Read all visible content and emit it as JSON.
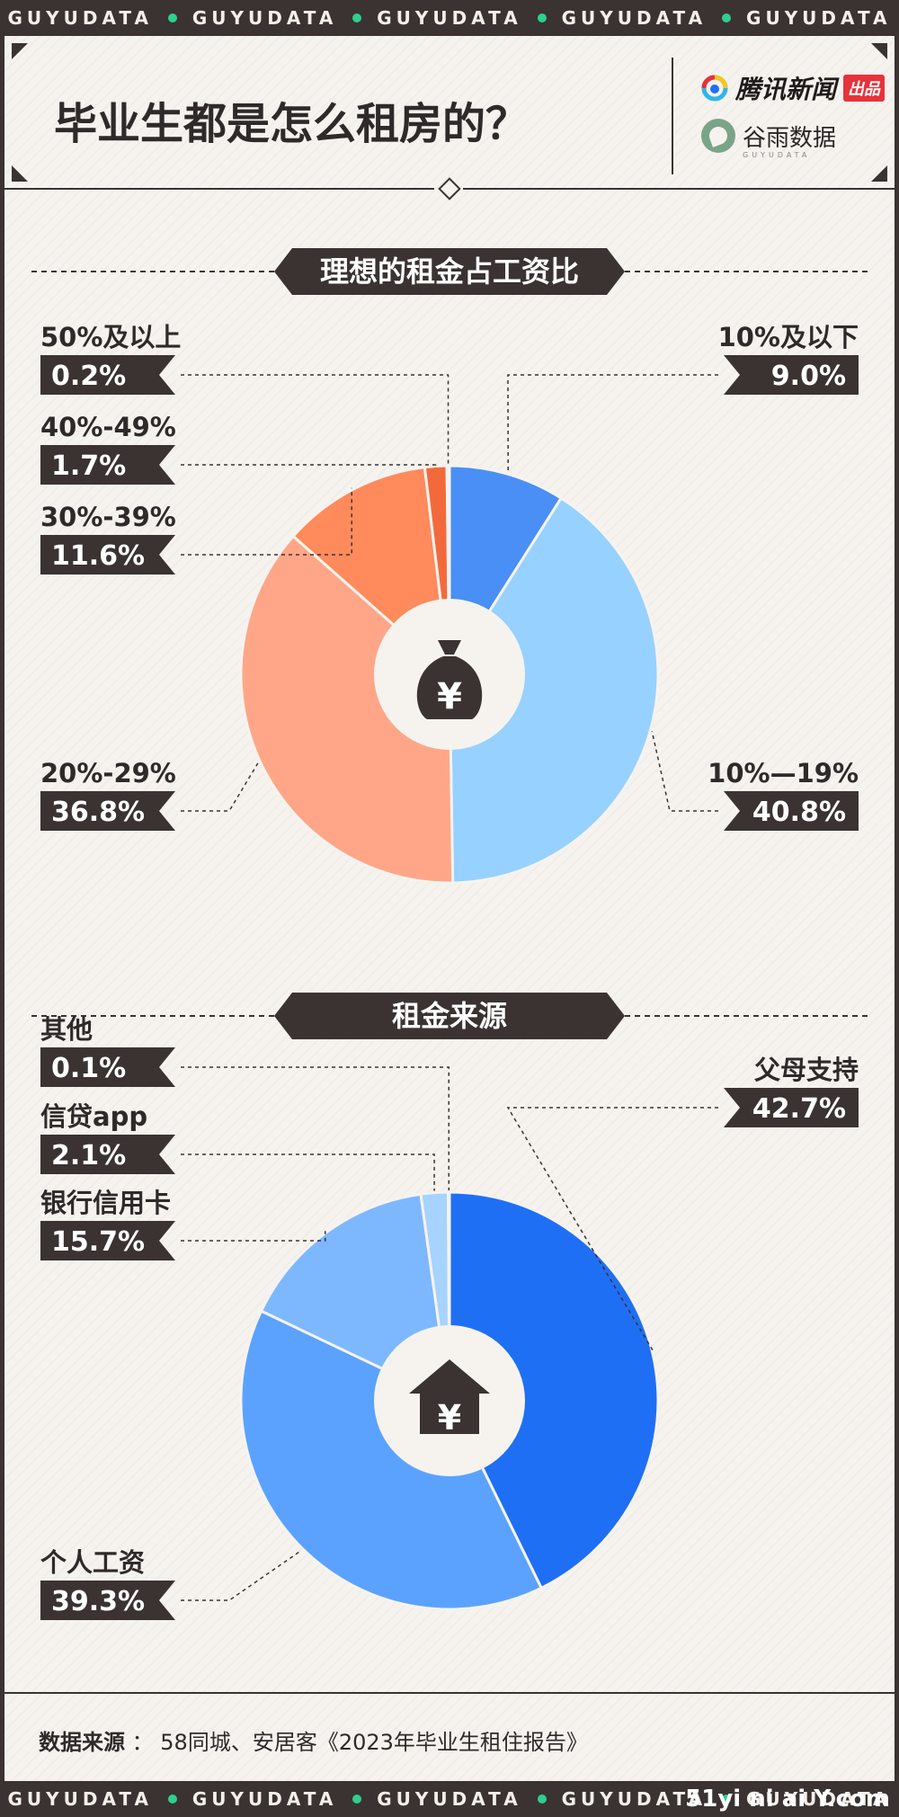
{
  "banner": {
    "items": [
      "GUYUDATA",
      "GUYUDATA",
      "GUYUDATA",
      "GUYUDATA",
      "GUYUDATA"
    ],
    "watermark": "51yi ni ai Y.com"
  },
  "header": {
    "title": "毕业生都是怎么租房的？",
    "brand_tencent": "腾讯新闻",
    "brand_tencent_tag": "出品",
    "brand_guyu": "谷雨数据",
    "brand_guyu_sub": "GUYUDATA"
  },
  "chart_data": [
    {
      "type": "pie",
      "title": "理想的租金占工资比",
      "center_icon": "money-bag-yen-icon",
      "slices": [
        {
          "label": "10%及以下",
          "value": 9.0,
          "value_label": "9.0%",
          "color": "#4a8ff5"
        },
        {
          "label": "10%—19%",
          "value": 40.8,
          "value_label": "40.8%",
          "color": "#97d1ff"
        },
        {
          "label": "20%-29%",
          "value": 36.8,
          "value_label": "36.8%",
          "color": "#ffa688"
        },
        {
          "label": "30%-39%",
          "value": 11.6,
          "value_label": "11.6%",
          "color": "#ff8a5c"
        },
        {
          "label": "40%-49%",
          "value": 1.7,
          "value_label": "1.7%",
          "color": "#f26a3c"
        },
        {
          "label": "50%及以上",
          "value": 0.2,
          "value_label": "0.2%",
          "color": "#e85a2c"
        }
      ]
    },
    {
      "type": "pie",
      "title": "租金来源",
      "center_icon": "house-yen-icon",
      "slices": [
        {
          "label": "父母支持",
          "value": 42.7,
          "value_label": "42.7%",
          "color": "#1f6ff5"
        },
        {
          "label": "个人工资",
          "value": 39.3,
          "value_label": "39.3%",
          "color": "#5ba2ff"
        },
        {
          "label": "银行信用卡",
          "value": 15.7,
          "value_label": "15.7%",
          "color": "#7db8ff"
        },
        {
          "label": "信贷app",
          "value": 2.1,
          "value_label": "2.1%",
          "color": "#a6d3ff"
        },
        {
          "label": "其他",
          "value": 0.1,
          "value_label": "0.1%",
          "color": "#c9e4ff"
        }
      ]
    }
  ],
  "source": {
    "label": "数据来源",
    "separator": "：",
    "text": "58同城、安居客《2023年毕业生租住报告》"
  }
}
